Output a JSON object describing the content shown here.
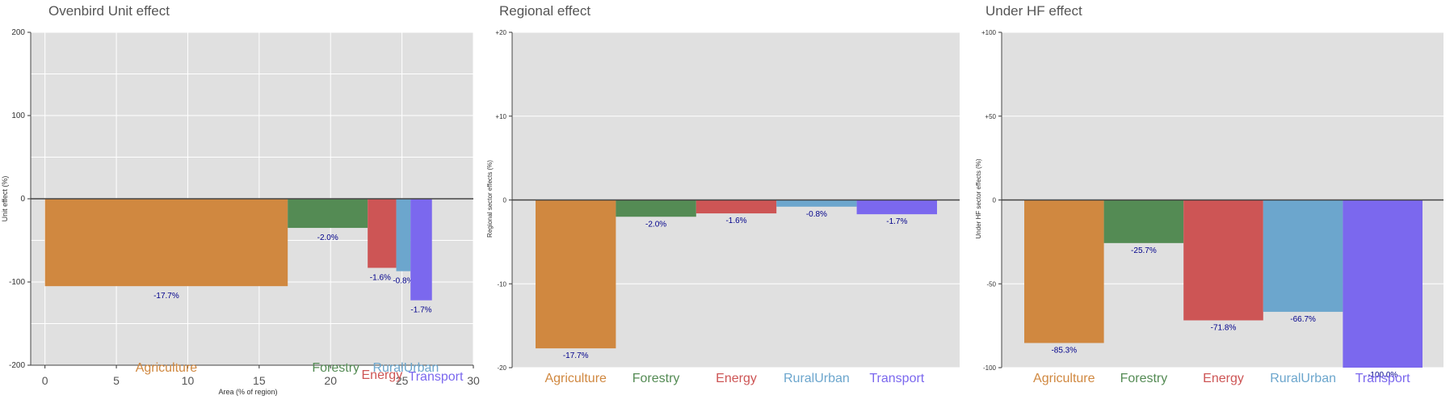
{
  "colors": {
    "Agriculture": "#d08840",
    "Forestry": "#548b54",
    "Energy": "#cd5555",
    "RuralUrban": "#6ca6cd",
    "Transport": "#7b68ee",
    "panel_bg": "#e0e0e0",
    "label_text": "#00008b"
  },
  "chart_data": [
    {
      "type": "bar",
      "variant": "variable-width",
      "title": "Ovenbird Unit effect",
      "xlabel": "Area (% of region)",
      "ylabel": "Unit effect (%)",
      "xlim": [
        -1,
        30
      ],
      "ylim": [
        -200,
        200
      ],
      "xticks": [
        0,
        5,
        10,
        15,
        20,
        25,
        30
      ],
      "yticks": [
        -200,
        -100,
        0,
        100,
        200
      ],
      "ytick_labels": [
        "-200",
        "-100",
        "0",
        "100",
        "200"
      ],
      "grid": true,
      "categories": [
        "Agriculture",
        "Forestry",
        "Energy",
        "RuralUrban",
        "Transport"
      ],
      "bars": [
        {
          "name": "Agriculture",
          "x0": 0,
          "x1": 17.0,
          "value": -105,
          "label": "-17.7%"
        },
        {
          "name": "Forestry",
          "x0": 17.0,
          "x1": 22.6,
          "value": -35,
          "label": "-2.0%"
        },
        {
          "name": "Energy",
          "x0": 22.6,
          "x1": 24.6,
          "value": -83,
          "label": "-1.6%"
        },
        {
          "name": "RuralUrban",
          "x0": 24.6,
          "x1": 25.6,
          "value": -87,
          "label": "-0.8%"
        },
        {
          "name": "Transport",
          "x0": 25.6,
          "x1": 27.1,
          "value": -122,
          "label": "-1.7%"
        }
      ]
    },
    {
      "type": "bar",
      "title": "Regional effect",
      "xlabel": "",
      "ylabel": "Regional sector effects (%)",
      "ylim": [
        -20,
        20
      ],
      "yticks": [
        -20,
        -10,
        0,
        10,
        20
      ],
      "ytick_labels": [
        "-20",
        "-10",
        "0",
        "+10",
        "+20"
      ],
      "grid": true,
      "categories": [
        "Agriculture",
        "Forestry",
        "Energy",
        "RuralUrban",
        "Transport"
      ],
      "values": [
        -17.7,
        -2.0,
        -1.6,
        -0.8,
        -1.7
      ],
      "labels": [
        "-17.7%",
        "-2.0%",
        "-1.6%",
        "-0.8%",
        "-1.7%"
      ]
    },
    {
      "type": "bar",
      "title": "Under HF effect",
      "xlabel": "",
      "ylabel": "Under HF sector effects (%)",
      "ylim": [
        -100,
        100
      ],
      "yticks": [
        -100,
        -50,
        0,
        50,
        100
      ],
      "ytick_labels": [
        "-100",
        "-50",
        "0",
        "+50",
        "+100"
      ],
      "grid": true,
      "categories": [
        "Agriculture",
        "Forestry",
        "Energy",
        "RuralUrban",
        "Transport"
      ],
      "values": [
        -85.3,
        -25.7,
        -71.8,
        -66.7,
        -100.0
      ],
      "labels": [
        "-85.3%",
        "-25.7%",
        "-71.8%",
        "-66.7%",
        "-100.0%"
      ]
    }
  ]
}
